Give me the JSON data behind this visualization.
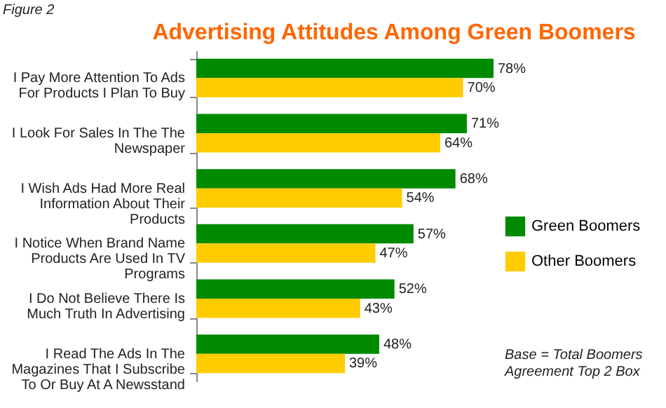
{
  "chart_data": {
    "type": "bar",
    "orientation": "horizontal",
    "title": "Advertising Attitudes Among Green Boomers",
    "categories": [
      "I Pay More Attention To Ads For Products I Plan To Buy",
      "I Look For Sales In The The Newspaper",
      "I Wish Ads Had More Real Information About Their Products",
      "I Notice When Brand Name Products Are Used In TV Programs",
      "I Do Not Believe There Is Much Truth In Advertising",
      "I Read The Ads In The Magazines That I Subscribe To Or Buy At A Newsstand"
    ],
    "series": [
      {
        "name": "Green Boomers",
        "color": "#008a00",
        "values": [
          78,
          71,
          68,
          57,
          52,
          48
        ],
        "value_labels": [
          "78%",
          "71%",
          "68%",
          "57%",
          "52%",
          "48%"
        ]
      },
      {
        "name": "Other Boomers",
        "color": "#ffcc00",
        "values": [
          70,
          64,
          54,
          47,
          43,
          39
        ],
        "value_labels": [
          "70%",
          "64%",
          "54%",
          "47%",
          "43%",
          "39%"
        ]
      }
    ],
    "legend": "right",
    "grid": false,
    "annotations": [
      "Figure 2",
      "Base = Total Boomers\nAgreement Top 2 Box"
    ]
  }
}
